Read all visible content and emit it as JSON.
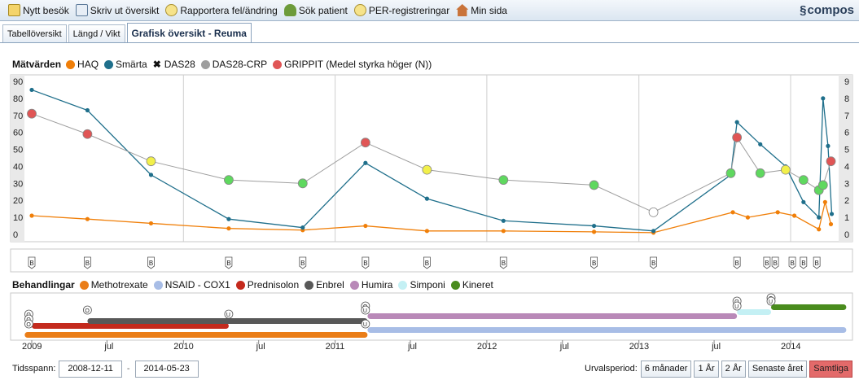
{
  "toolbar": {
    "items": [
      {
        "label": "Nytt besök",
        "icon": "pencil-icon"
      },
      {
        "label": "Skriv ut översikt",
        "icon": "printer-icon"
      },
      {
        "label": "Rapportera fel/ändring",
        "icon": "bulb-icon"
      },
      {
        "label": "Sök patient",
        "icon": "person-search-icon"
      },
      {
        "label": "PER-registreringar",
        "icon": "bulb-icon"
      },
      {
        "label": "Min sida",
        "icon": "home-icon"
      }
    ],
    "brand": "compos"
  },
  "tabs": [
    {
      "label": "Tabellöversikt",
      "active": false
    },
    {
      "label": "Längd / Vikt",
      "active": false
    },
    {
      "label": "Grafisk översikt - Reuma",
      "active": true
    }
  ],
  "measures_legend": {
    "title": "Mätvärden",
    "items": [
      {
        "label": "HAQ",
        "color": "#f07f09"
      },
      {
        "label": "Smärta",
        "color": "#1f6f8b"
      },
      {
        "label": "DAS28",
        "color": "#222222"
      },
      {
        "label": "DAS28-CRP",
        "color": "#9e9e9e"
      },
      {
        "label": "GRIPPIT (Medel styrka höger (N))",
        "color": "#e05555"
      }
    ]
  },
  "treatments_legend": {
    "title": "Behandlingar",
    "items": [
      {
        "label": "Methotrexate",
        "color": "#ea7d17"
      },
      {
        "label": "NSAID - COX1",
        "color": "#a8bde6"
      },
      {
        "label": "Prednisolon",
        "color": "#c42a1d"
      },
      {
        "label": "Enbrel",
        "color": "#585858"
      },
      {
        "label": "Humira",
        "color": "#b989b8"
      },
      {
        "label": "Simponi",
        "color": "#c4f0f4"
      },
      {
        "label": "Kineret",
        "color": "#4a8c1e"
      }
    ]
  },
  "chart_data": {
    "type": "line",
    "x_range": [
      "2008-12-11",
      "2014-05-23"
    ],
    "y_left_ticks": [
      "90",
      "80",
      "70",
      "60",
      "50",
      "40",
      "30",
      "20",
      "10",
      "0"
    ],
    "y_right_ticks": [
      "9",
      "8",
      "7",
      "6",
      "5",
      "4",
      "3",
      "2",
      "1",
      "0"
    ],
    "ylim_left": [
      0,
      90
    ],
    "ylim_right": [
      0,
      9
    ],
    "x_tick_labels": [
      "2009",
      "jul",
      "2010",
      "jul",
      "2011",
      "jul",
      "2012",
      "jul",
      "2013",
      "jul",
      "2014"
    ],
    "grid": true,
    "series": [
      {
        "name": "HAQ",
        "color": "#f07f09",
        "axis": "left",
        "points": [
          [
            "2009-01-01",
            11
          ],
          [
            "2009-05-15",
            9
          ],
          [
            "2009-10-15",
            6.5
          ],
          [
            "2010-04-20",
            3.5
          ],
          [
            "2010-10-15",
            2.5
          ],
          [
            "2011-03-15",
            5
          ],
          [
            "2011-08-10",
            2
          ],
          [
            "2012-02-10",
            2
          ],
          [
            "2012-09-15",
            1.5
          ],
          [
            "2013-02-05",
            1
          ],
          [
            "2013-08-15",
            13
          ],
          [
            "2013-09-20",
            10
          ],
          [
            "2013-12-01",
            13
          ],
          [
            "2014-01-10",
            11
          ],
          [
            "2014-03-10",
            3
          ],
          [
            "2014-03-25",
            19
          ],
          [
            "2014-04-08",
            6
          ]
        ]
      },
      {
        "name": "Smärta",
        "color": "#1f6f8b",
        "axis": "left",
        "points": [
          [
            "2009-01-01",
            85
          ],
          [
            "2009-05-15",
            73
          ],
          [
            "2009-10-15",
            35
          ],
          [
            "2010-04-20",
            9
          ],
          [
            "2010-10-15",
            4
          ],
          [
            "2011-03-15",
            42
          ],
          [
            "2011-08-10",
            21
          ],
          [
            "2012-02-10",
            8
          ],
          [
            "2012-09-15",
            5
          ],
          [
            "2013-02-05",
            2
          ],
          [
            "2013-08-10",
            35
          ],
          [
            "2013-08-25",
            66
          ],
          [
            "2013-10-20",
            53
          ],
          [
            "2013-12-20",
            40
          ],
          [
            "2014-02-01",
            19
          ],
          [
            "2014-03-10",
            10
          ],
          [
            "2014-03-20",
            80
          ],
          [
            "2014-04-01",
            52
          ],
          [
            "2014-04-10",
            12
          ]
        ]
      },
      {
        "name": "DAS28-CRP",
        "color": "#9e9e9e",
        "axis": "right",
        "points": [
          [
            "2009-01-01",
            7.1
          ],
          [
            "2009-05-15",
            5.9
          ],
          [
            "2009-10-15",
            4.3
          ],
          [
            "2010-04-20",
            3.2
          ],
          [
            "2010-10-15",
            3.0
          ],
          [
            "2011-03-15",
            5.4
          ],
          [
            "2011-08-10",
            3.8
          ],
          [
            "2012-02-10",
            3.2
          ],
          [
            "2012-09-15",
            2.9
          ],
          [
            "2013-02-05",
            1.3
          ],
          [
            "2013-08-10",
            3.6
          ],
          [
            "2013-08-25",
            5.7
          ],
          [
            "2013-10-20",
            3.6
          ],
          [
            "2013-12-20",
            3.8
          ],
          [
            "2014-02-01",
            3.2
          ],
          [
            "2014-03-10",
            2.6
          ],
          [
            "2014-03-20",
            2.9
          ],
          [
            "2014-04-08",
            4.3
          ]
        ]
      }
    ],
    "markers": [
      {
        "date": "2009-01-01",
        "value": 7.1,
        "fill": "#e05555"
      },
      {
        "date": "2009-05-15",
        "value": 5.9,
        "fill": "#e05555"
      },
      {
        "date": "2009-10-15",
        "value": 4.3,
        "fill": "#f2f04a"
      },
      {
        "date": "2010-04-20",
        "value": 3.2,
        "fill": "#5fd85f"
      },
      {
        "date": "2010-10-15",
        "value": 3.0,
        "fill": "#5fd85f"
      },
      {
        "date": "2011-03-15",
        "value": 5.4,
        "fill": "#e05555"
      },
      {
        "date": "2011-08-10",
        "value": 3.8,
        "fill": "#f2f04a"
      },
      {
        "date": "2012-02-10",
        "value": 3.2,
        "fill": "#5fd85f"
      },
      {
        "date": "2012-09-15",
        "value": 2.9,
        "fill": "#5fd85f"
      },
      {
        "date": "2013-02-05",
        "value": 1.3,
        "fill": "#ffffff"
      },
      {
        "date": "2013-08-10",
        "value": 3.6,
        "fill": "#5fd85f"
      },
      {
        "date": "2013-08-25",
        "value": 5.7,
        "fill": "#e05555"
      },
      {
        "date": "2013-10-20",
        "value": 3.6,
        "fill": "#5fd85f"
      },
      {
        "date": "2013-12-20",
        "value": 3.8,
        "fill": "#f2f04a"
      },
      {
        "date": "2014-02-01",
        "value": 3.2,
        "fill": "#5fd85f"
      },
      {
        "date": "2014-03-10",
        "value": 2.6,
        "fill": "#5fd85f"
      },
      {
        "date": "2014-03-20",
        "value": 2.9,
        "fill": "#5fd85f"
      },
      {
        "date": "2014-04-08",
        "value": 4.3,
        "fill": "#e05555"
      }
    ],
    "visit_markers": {
      "label": "B",
      "dates": [
        "2009-01-01",
        "2009-05-15",
        "2009-10-15",
        "2010-04-20",
        "2010-10-15",
        "2011-03-15",
        "2011-08-10",
        "2012-02-10",
        "2012-09-15",
        "2013-02-05",
        "2013-08-25",
        "2013-11-05",
        "2013-11-25",
        "2014-01-05",
        "2014-02-01",
        "2014-03-05"
      ]
    },
    "treatments": [
      {
        "name": "Methotrexate",
        "color": "#ea7d17",
        "start": "2008-12-15",
        "end": "2011-03-20"
      },
      {
        "name": "NSAID - COX1",
        "color": "#a8bde6",
        "start": "2011-03-20",
        "end": "2014-05-15"
      },
      {
        "name": "Prednisolon",
        "color": "#c42a1d",
        "start": "2009-01-01",
        "end": "2010-04-20"
      },
      {
        "name": "Enbrel",
        "color": "#585858",
        "start": "2009-05-15",
        "end": "2011-03-20"
      },
      {
        "name": "Humira",
        "color": "#b989b8",
        "start": "2011-03-20",
        "end": "2013-08-25"
      },
      {
        "name": "Simponi",
        "color": "#c4f0f4",
        "start": "2013-08-25",
        "end": "2013-11-15"
      },
      {
        "name": "Kineret",
        "color": "#4a8c1e",
        "start": "2013-11-15",
        "end": "2014-05-15"
      }
    ],
    "event_labels": [
      "O",
      "U"
    ]
  },
  "bottom": {
    "span_label": "Tidsspann:",
    "from_date": "2008-12-11",
    "separator": "-",
    "to_date": "2014-05-23",
    "period_label": "Urvalsperiod:",
    "buttons": [
      {
        "label": "6 månader",
        "active": false
      },
      {
        "label": "1 År",
        "active": false
      },
      {
        "label": "2 År",
        "active": false
      },
      {
        "label": "Senaste året",
        "active": false
      },
      {
        "label": "Samtliga",
        "active": true
      }
    ]
  }
}
